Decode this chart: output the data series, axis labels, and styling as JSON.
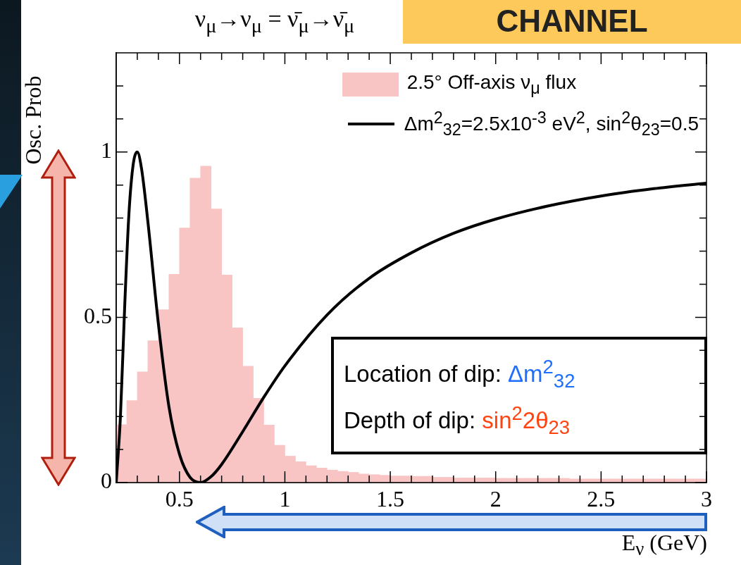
{
  "chart_data": {
    "type": "histogram",
    "title": "ν$_{μ}$→ν$_{μ}$ = ν̄$_{μ}$→ν̄$_{μ}$",
    "xlabel": "E$_{ν}$ (GeV)",
    "ylabel": "Osc. Prob",
    "xlim": [
      0.2,
      3
    ],
    "ylim": [
      0,
      1.3
    ],
    "xticks": [
      {
        "value": 0.3,
        "label": null
      },
      {
        "value": 0.4,
        "label": null
      },
      0.5,
      {
        "value": 0.6,
        "label": null
      },
      {
        "value": 0.7,
        "label": null
      },
      {
        "value": 0.8,
        "label": null
      },
      {
        "value": 0.9,
        "label": null
      },
      1,
      {
        "value": 1.1,
        "label": null
      },
      {
        "value": 1.2,
        "label": null
      },
      {
        "value": 1.3,
        "label": null
      },
      {
        "value": 1.4,
        "label": null
      },
      1.5,
      {
        "value": 1.6,
        "label": null
      },
      {
        "value": 1.7,
        "label": null
      },
      {
        "value": 1.8,
        "label": null
      },
      {
        "value": 1.9,
        "label": null
      },
      2,
      {
        "value": 2.1,
        "label": null
      },
      {
        "value": 2.2,
        "label": null
      },
      {
        "value": 2.3,
        "label": null
      },
      {
        "value": 2.4,
        "label": null
      },
      2.5,
      {
        "value": 2.6,
        "label": null
      },
      {
        "value": 2.7,
        "label": null
      },
      {
        "value": 2.8,
        "label": null
      },
      {
        "value": 2.9,
        "label": null
      },
      3
    ],
    "yticks": [
      0,
      {
        "value": 0.1,
        "label": null
      },
      {
        "value": 0.2,
        "label": null
      },
      {
        "value": 0.3,
        "label": null
      },
      {
        "value": 0.4,
        "label": null
      },
      0.5,
      {
        "value": 0.6,
        "label": null
      },
      {
        "value": 0.7,
        "label": null
      },
      {
        "value": 0.8,
        "label": null
      },
      {
        "value": 0.9,
        "label": null
      },
      1,
      {
        "value": 1.1,
        "label": null
      },
      {
        "value": 1.2,
        "label": null
      }
    ],
    "legend": "top right",
    "series": [
      {
        "name": "2.5° Off-axis ν$_{μ}$ flux",
        "color": "#f9c4c4",
        "bins": [
          0.2,
          0.25,
          0.3,
          0.35,
          0.4,
          0.45,
          0.5,
          0.55,
          0.6,
          0.65,
          0.7,
          0.75,
          0.8,
          0.85,
          0.9,
          0.95,
          1.0,
          1.05,
          1.1,
          1.15,
          1.2,
          1.25,
          1.3,
          1.35,
          1.4,
          1.45,
          1.5,
          1.55,
          1.6,
          1.65,
          1.7,
          1.75,
          1.8,
          1.85,
          1.9,
          1.95,
          2.0,
          2.05,
          2.1,
          2.15,
          2.2,
          2.25,
          2.3,
          2.35,
          2.4,
          2.45,
          2.5,
          2.55,
          2.6,
          2.65,
          2.7,
          2.75,
          2.8,
          2.85,
          2.9,
          2.95,
          3.0
        ],
        "values": [
          0.175,
          0.248,
          0.335,
          0.429,
          0.523,
          0.63,
          0.77,
          0.921,
          0.957,
          0.828,
          0.628,
          0.468,
          0.352,
          0.255,
          0.174,
          0.113,
          0.08,
          0.063,
          0.051,
          0.044,
          0.038,
          0.034,
          0.031,
          0.026,
          0.024,
          0.022,
          0.02,
          0.02,
          0.019,
          0.019,
          0.016,
          0.016,
          0.014,
          0.014,
          0.014,
          0.014,
          0.013,
          0.013,
          0.013,
          0.013,
          0.013,
          0.013,
          0.013,
          0.011,
          0.011,
          0.011,
          0.011,
          0.011,
          0.011,
          0.011,
          0.011,
          0.011,
          0.011,
          0.011,
          0.011,
          0.011
        ]
      },
      {
        "type": "line",
        "name": "Δm$^{2}$$_{32}$=2.5x10$^{-3}$ eV$^{2}$, sin$^{2}$θ$_{23}$=0.5",
        "color": "#000000",
        "x": [
          0.2,
          0.22,
          0.24,
          0.26,
          0.28,
          0.3,
          0.32,
          0.35,
          0.4,
          0.45,
          0.5,
          0.55,
          0.6,
          0.65,
          0.7,
          0.8,
          0.9,
          1.0,
          1.2,
          1.4,
          1.6,
          1.8,
          2.0,
          2.25,
          2.5,
          2.75,
          3.0
        ],
        "values": [
          0.0,
          0.2,
          0.53,
          0.81,
          0.96,
          1.0,
          0.95,
          0.79,
          0.48,
          0.23,
          0.086,
          0.016,
          0.0,
          0.018,
          0.055,
          0.154,
          0.258,
          0.353,
          0.507,
          0.618,
          0.695,
          0.754,
          0.797,
          0.837,
          0.867,
          0.889,
          0.906
        ]
      }
    ],
    "annotations": [
      "Location of dip: Δm$^{2}$$_{32}$",
      "Depth of dip: sin$^{2}$2θ$_{23}$",
      "CHANNEL"
    ]
  }
}
